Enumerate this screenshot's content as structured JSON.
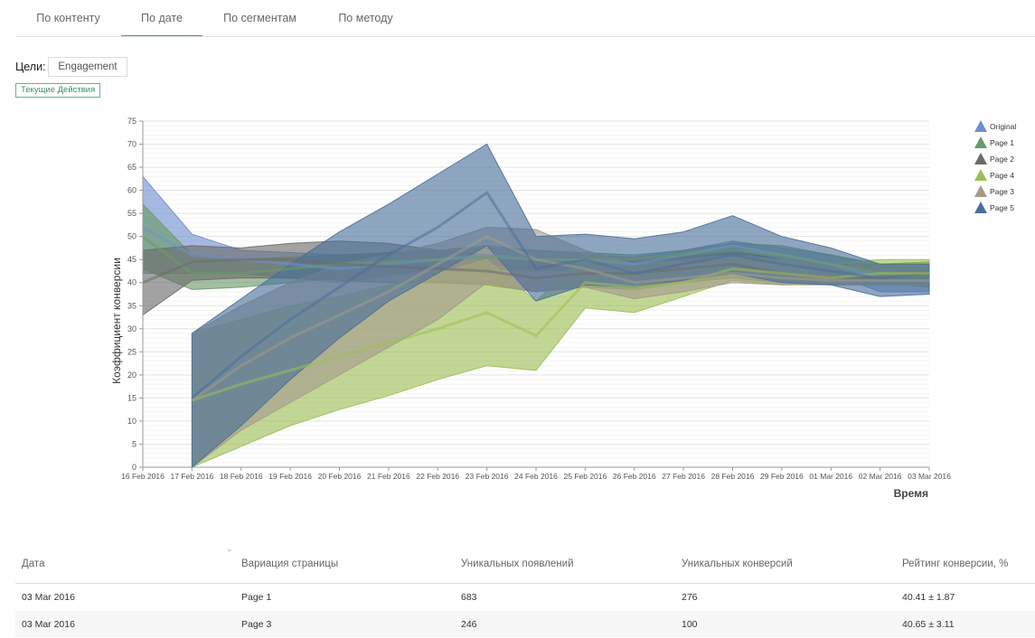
{
  "tabs": [
    {
      "label": "По контенту",
      "active": false
    },
    {
      "label": "По дате",
      "active": true
    },
    {
      "label": "По сегментам",
      "active": false
    },
    {
      "label": "По методу",
      "active": false
    }
  ],
  "goals": {
    "label": "Цели:",
    "value": "Engagement"
  },
  "current_actions_label": "Текущие Действия",
  "chart_data": {
    "type": "area",
    "title": "",
    "xlabel": "Время",
    "ylabel": "Коэффициент конверсии",
    "ylim": [
      0,
      75
    ],
    "yticks": [
      0,
      5,
      10,
      15,
      20,
      25,
      30,
      35,
      40,
      45,
      50,
      55,
      60,
      65,
      70,
      75
    ],
    "categories": [
      "16 Feb 2016",
      "17 Feb 2016",
      "18 Feb 2016",
      "19 Feb 2016",
      "20 Feb 2016",
      "21 Feb 2016",
      "22 Feb 2016",
      "23 Feb 2016",
      "24 Feb 2016",
      "25 Feb 2016",
      "26 Feb 2016",
      "27 Feb 2016",
      "28 Feb 2016",
      "29 Feb 2016",
      "01 Mar 2016",
      "02 Mar 2016",
      "03 Mar 2016"
    ],
    "legend_position": "top-right",
    "series": [
      {
        "name": "Original",
        "color": "#6f8fce",
        "x_start": 0,
        "values": [
          52,
          46,
          45,
          44,
          43,
          44,
          45,
          46,
          45,
          45,
          44,
          46,
          48,
          46,
          44,
          41,
          41
        ],
        "upper": [
          63,
          50.5,
          47,
          46.5,
          46,
          46.5,
          47,
          47.5,
          47,
          46,
          45.5,
          47,
          49,
          47.5,
          46,
          43.5,
          44
        ],
        "lower": [
          42,
          42,
          42,
          41,
          40,
          41.5,
          43,
          44,
          43,
          43.5,
          42,
          44,
          46.5,
          44,
          42,
          38,
          38
        ]
      },
      {
        "name": "Page 1",
        "color": "#6a9a68",
        "x_start": 0,
        "values": [
          50,
          42,
          42,
          43,
          44,
          44.5,
          45,
          45.5,
          45,
          45,
          45,
          46,
          47,
          46,
          44,
          42,
          41
        ],
        "upper": [
          57,
          46,
          45,
          45.5,
          46,
          46.5,
          47,
          48,
          47,
          46.5,
          46,
          47,
          48.5,
          48,
          46,
          44,
          43
        ],
        "lower": [
          43,
          38.5,
          39,
          40,
          41,
          42,
          43,
          43,
          42.5,
          43,
          43,
          44,
          45,
          44,
          42,
          40,
          39
        ]
      },
      {
        "name": "Page 2",
        "color": "#6b6b6b",
        "x_start": 0,
        "values": [
          40,
          44.5,
          45,
          45,
          44,
          43.5,
          43,
          42.5,
          41,
          42,
          42,
          43,
          44,
          42,
          41,
          41,
          42
        ],
        "upper": [
          47,
          48,
          47.5,
          48.5,
          49,
          48.5,
          47,
          46,
          45,
          45.5,
          45,
          46,
          47,
          45,
          44,
          44,
          44.5
        ],
        "lower": [
          33,
          40.5,
          41,
          41,
          40.5,
          40,
          40,
          39.5,
          38,
          39,
          38.5,
          40,
          41,
          40,
          39.5,
          39.5,
          40
        ]
      },
      {
        "name": "Page 4",
        "color": "#9cbf54",
        "x_start": 1,
        "values": [
          null,
          14.5,
          18,
          21,
          24,
          27,
          30,
          33.5,
          28.5,
          40,
          39,
          40,
          43,
          42,
          41,
          42,
          42
        ],
        "upper": [
          null,
          29,
          32,
          35,
          37,
          39.5,
          42,
          45,
          36,
          46,
          44,
          44.5,
          45.5,
          45,
          44,
          45,
          45
        ],
        "lower": [
          null,
          0,
          4.5,
          9,
          12.5,
          15.5,
          19,
          22,
          21,
          34.5,
          33.5,
          37,
          40.5,
          39.5,
          40,
          39.5,
          39.5
        ]
      },
      {
        "name": "Page 3",
        "color": "#a39a8c",
        "x_start": 1,
        "values": [
          null,
          14.5,
          22,
          28,
          33,
          38,
          44,
          50,
          45,
          43,
          40,
          41,
          42,
          41,
          40.5,
          40.5,
          40.5
        ],
        "upper": [
          null,
          29,
          35,
          40,
          44,
          46,
          48.5,
          52,
          51.5,
          47,
          44,
          45,
          46,
          45,
          44,
          43,
          43
        ],
        "lower": [
          null,
          0,
          8,
          14,
          20,
          26,
          32,
          40,
          38,
          39,
          36.5,
          38,
          40,
          39.5,
          39.5,
          39.5,
          39.5
        ]
      },
      {
        "name": "Page 5",
        "color": "#4b6f99",
        "x_start": 1,
        "values": [
          null,
          15,
          24,
          32,
          39,
          46,
          52,
          59.5,
          43,
          45,
          42,
          44,
          46,
          44,
          42.5,
          41,
          41
        ],
        "upper": [
          null,
          29,
          36.5,
          44,
          51,
          57,
          63.5,
          70,
          50,
          50.5,
          49.5,
          51,
          54.5,
          50,
          47.5,
          44,
          44
        ],
        "lower": [
          null,
          0,
          9,
          19,
          28,
          36,
          42,
          48,
          36,
          39.5,
          39,
          40.5,
          42,
          40,
          39.5,
          37,
          37.5
        ]
      }
    ]
  },
  "table": {
    "columns": [
      "Дата",
      "Вариация страницы",
      "Уникальных появлений",
      "Уникальных конверсий",
      "Рейтинг конверсии, %"
    ],
    "rows": [
      {
        "date": "03 Mar 2016",
        "variation": "Page 1",
        "appearances": "683",
        "conversions": "276",
        "rate": "40.41 ± 1.87"
      },
      {
        "date": "03 Mar 2016",
        "variation": "Page 3",
        "appearances": "246",
        "conversions": "100",
        "rate": "40.65 ± 3.11"
      }
    ]
  }
}
